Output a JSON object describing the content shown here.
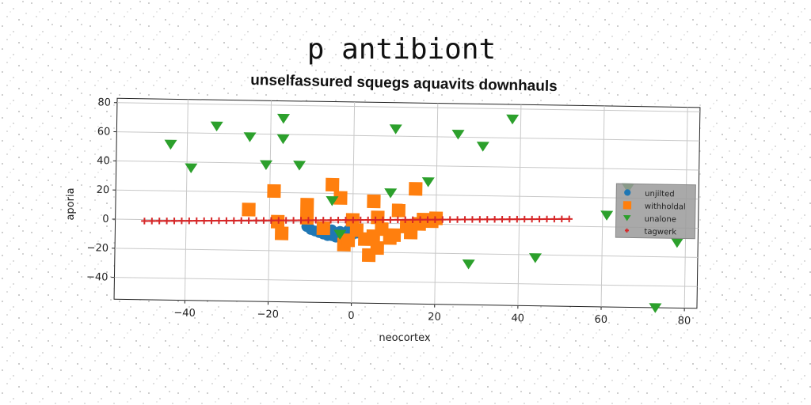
{
  "chart_data": {
    "type": "scatter",
    "title": "p antibiont",
    "subtitle": "unselfassured squegs aquavits downhauls",
    "xlabel": "neocortex",
    "ylabel": "aporia",
    "xlim": [
      -57,
      83
    ],
    "ylim": [
      -55,
      83
    ],
    "xticks": [
      -40,
      -20,
      0,
      20,
      40,
      60,
      80
    ],
    "yticks": [
      -40,
      -20,
      0,
      20,
      40,
      60,
      80
    ],
    "grid": true,
    "legend_position": "center-right",
    "series": [
      {
        "name": "unjilted",
        "marker": "circle",
        "color": "#1f77b4",
        "points": [
          [
            -11,
            -3
          ],
          [
            -10,
            -5
          ],
          [
            -9,
            -6
          ],
          [
            -8,
            -7
          ],
          [
            -7,
            -8
          ],
          [
            -6,
            -9
          ],
          [
            -5,
            -9
          ],
          [
            -4,
            -10
          ],
          [
            -3,
            -10
          ],
          [
            -2,
            -10
          ],
          [
            -1,
            -9
          ],
          [
            0,
            -8
          ],
          [
            1,
            -7
          ],
          [
            -7,
            -4
          ],
          [
            -5,
            -5
          ],
          [
            -3,
            -6
          ],
          [
            -1,
            -5
          ]
        ]
      },
      {
        "name": "withholdal",
        "marker": "square",
        "color": "#ff7f0e",
        "points": [
          [
            -25,
            8
          ],
          [
            -19,
            21
          ],
          [
            -18,
            0
          ],
          [
            -17,
            -8
          ],
          [
            -11,
            12
          ],
          [
            -11,
            3
          ],
          [
            -7,
            -4
          ],
          [
            -5,
            26
          ],
          [
            -3,
            17
          ],
          [
            -2,
            -15
          ],
          [
            -1,
            -12
          ],
          [
            0,
            2
          ],
          [
            1,
            -5
          ],
          [
            3,
            -11
          ],
          [
            4,
            -22
          ],
          [
            5,
            -9
          ],
          [
            5,
            15
          ],
          [
            6,
            -17
          ],
          [
            6,
            4
          ],
          [
            7,
            -4
          ],
          [
            9,
            -10
          ],
          [
            10,
            -8
          ],
          [
            11,
            9
          ],
          [
            13,
            -2
          ],
          [
            14,
            -6
          ],
          [
            15,
            24
          ],
          [
            16,
            0
          ],
          [
            17,
            3
          ],
          [
            19,
            2
          ],
          [
            20,
            4
          ]
        ]
      },
      {
        "name": "unalone",
        "marker": "triangle-down",
        "color": "#2ca02c",
        "points": [
          [
            -44,
            52
          ],
          [
            -39,
            36
          ],
          [
            -33,
            65
          ],
          [
            -25,
            58
          ],
          [
            -21,
            39
          ],
          [
            -17,
            71
          ],
          [
            -17,
            57
          ],
          [
            -13,
            39
          ],
          [
            -5,
            15
          ],
          [
            -3,
            -8
          ],
          [
            9,
            21
          ],
          [
            10,
            65
          ],
          [
            18,
            29
          ],
          [
            25,
            62
          ],
          [
            28,
            -27
          ],
          [
            31,
            54
          ],
          [
            38,
            73
          ],
          [
            44,
            -22
          ],
          [
            61,
            8
          ],
          [
            66,
            27
          ],
          [
            73,
            -55
          ],
          [
            78,
            -10
          ]
        ]
      },
      {
        "name": "tagwerk",
        "marker": "plus",
        "color": "#d62728",
        "x_start": -50,
        "x_end": 52,
        "y_start": -1,
        "y_end": 5,
        "count": 58
      }
    ]
  }
}
